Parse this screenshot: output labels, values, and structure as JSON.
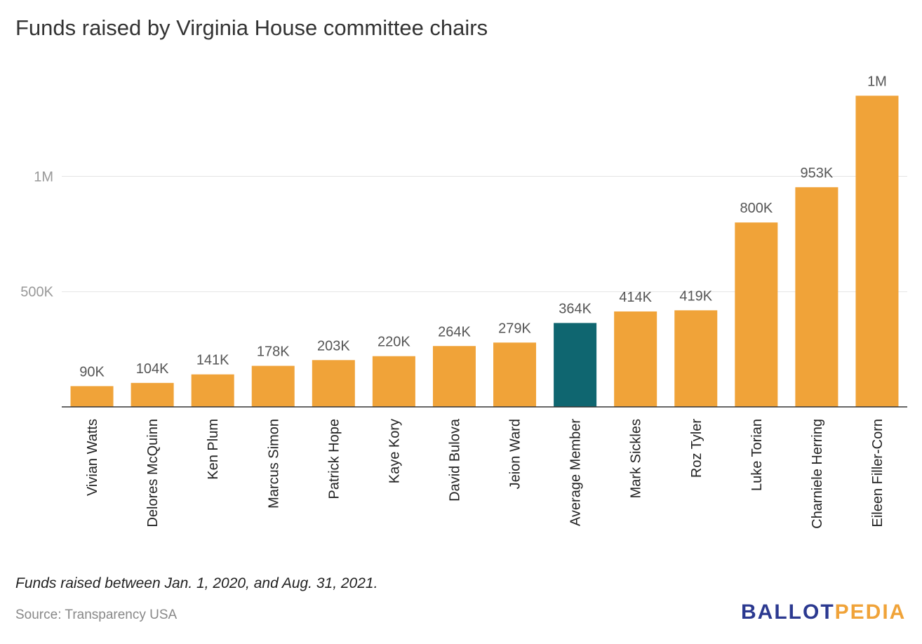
{
  "title": "Funds raised by Virginia House committee chairs",
  "note": "Funds raised between Jan. 1, 2020, and Aug. 31, 2021.",
  "source": "Source: Transparency USA",
  "logo": {
    "part1": "BALLOT",
    "part2": "PEDIA"
  },
  "colors": {
    "bar": "#f0a339",
    "highlight": "#0f6670",
    "grid": "#e3e3e3",
    "axis": "#333333",
    "label": "#555555",
    "tick": "#999999"
  },
  "chart_data": {
    "type": "bar",
    "title": "Funds raised by Virginia House committee chairs",
    "xlabel": "",
    "ylabel": "",
    "ylim": [
      0,
      1400000
    ],
    "yticks": [
      500000,
      1000000
    ],
    "ytick_labels": [
      "500K",
      "1M"
    ],
    "grid": true,
    "highlight_category": "Average Member",
    "categories": [
      "Vivian Watts",
      "Delores McQuinn",
      "Ken Plum",
      "Marcus Simon",
      "Patrick Hope",
      "Kaye Kory",
      "David Bulova",
      "Jeion Ward",
      "Average Member",
      "Mark Sickles",
      "Roz Tyler",
      "Luke Torian",
      "Charniele Herring",
      "Eileen Filler-Corn"
    ],
    "values": [
      90000,
      104000,
      141000,
      178000,
      203000,
      220000,
      264000,
      279000,
      364000,
      414000,
      419000,
      800000,
      953000,
      1350000
    ],
    "value_labels": [
      "90K",
      "104K",
      "141K",
      "178K",
      "203K",
      "220K",
      "264K",
      "279K",
      "364K",
      "414K",
      "419K",
      "800K",
      "953K",
      "1M"
    ]
  }
}
